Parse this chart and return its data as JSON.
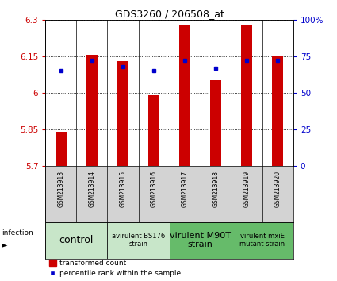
{
  "title": "GDS3260 / 206508_at",
  "samples": [
    "GSM213913",
    "GSM213914",
    "GSM213915",
    "GSM213916",
    "GSM213917",
    "GSM213918",
    "GSM213919",
    "GSM213920"
  ],
  "transformed_count": [
    5.84,
    6.155,
    6.13,
    5.99,
    6.28,
    6.05,
    6.28,
    6.15
  ],
  "percentile_rank": [
    65,
    72,
    68,
    65,
    72,
    67,
    72,
    72
  ],
  "ylim_left": [
    5.7,
    6.3
  ],
  "ylim_right": [
    0,
    100
  ],
  "yticks_left": [
    5.7,
    5.85,
    6.0,
    6.15,
    6.3
  ],
  "yticks_right": [
    0,
    25,
    50,
    75,
    100
  ],
  "ytick_labels_left": [
    "5.7",
    "5.85",
    "6",
    "6.15",
    "6.3"
  ],
  "ytick_labels_right": [
    "0",
    "25",
    "50",
    "75",
    "100%"
  ],
  "bar_color": "#cc0000",
  "dot_color": "#0000cc",
  "bar_bottom": 5.7,
  "groups": [
    {
      "label": "control",
      "start": 0,
      "end": 2,
      "color": "#c8e6c9",
      "fontsize": 9
    },
    {
      "label": "avirulent BS176\nstrain",
      "start": 2,
      "end": 4,
      "color": "#c8e6c9",
      "fontsize": 6
    },
    {
      "label": "virulent M90T\nstrain",
      "start": 4,
      "end": 6,
      "color": "#66bb6a",
      "fontsize": 8
    },
    {
      "label": "virulent mxiE\nmutant strain",
      "start": 6,
      "end": 8,
      "color": "#66bb6a",
      "fontsize": 6
    }
  ],
  "infection_label": "infection",
  "legend_bar_label": "transformed count",
  "legend_dot_label": "percentile rank within the sample",
  "bar_color_legend": "#cc0000",
  "dot_color_legend": "#0000cc",
  "tick_color_left": "#cc0000",
  "tick_color_right": "#0000cc",
  "label_bg_color": "#d3d3d3",
  "plot_bg_color": "#ffffff"
}
